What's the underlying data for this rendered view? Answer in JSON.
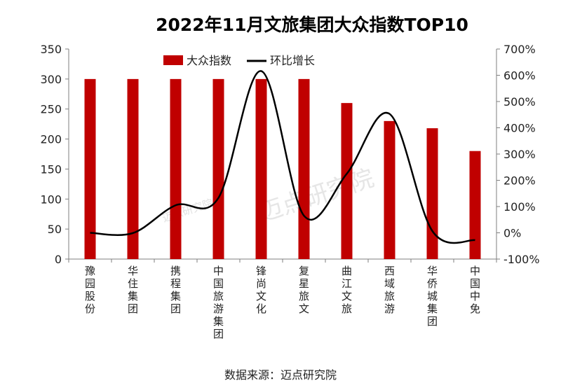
{
  "chart_data": {
    "type": "bar+line",
    "title": "2022年11月文旅集团大众指数TOP10",
    "source": "数据来源：迈点研究院",
    "watermark": "迈点研究院",
    "categories": [
      "豫园股份",
      "华住集团",
      "携程集团",
      "中国旅游集团",
      "锋尚文化",
      "复星旅文",
      "曲江文旅",
      "西域旅游",
      "华侨城集团",
      "中国中免"
    ],
    "series": [
      {
        "name": "大众指数",
        "type": "bar",
        "axis": "left",
        "color": "#C00000",
        "values": [
          300,
          300,
          300,
          300,
          300,
          300,
          260,
          230,
          218,
          180
        ]
      },
      {
        "name": "环比增长",
        "type": "line",
        "axis": "right",
        "color": "#000000",
        "values": [
          0,
          -1,
          105,
          133,
          616,
          65,
          225,
          453,
          7,
          -28
        ]
      }
    ],
    "left_axis": {
      "ylim": [
        0,
        350
      ],
      "ticks": [
        "0",
        "50",
        "100",
        "150",
        "200",
        "250",
        "300",
        "350"
      ]
    },
    "right_axis": {
      "ylim": [
        -100,
        700
      ],
      "ticks": [
        "-100%",
        "0%",
        "100%",
        "200%",
        "300%",
        "400%",
        "500%",
        "600%",
        "700%"
      ]
    },
    "legend": "top-center",
    "grid": false
  }
}
